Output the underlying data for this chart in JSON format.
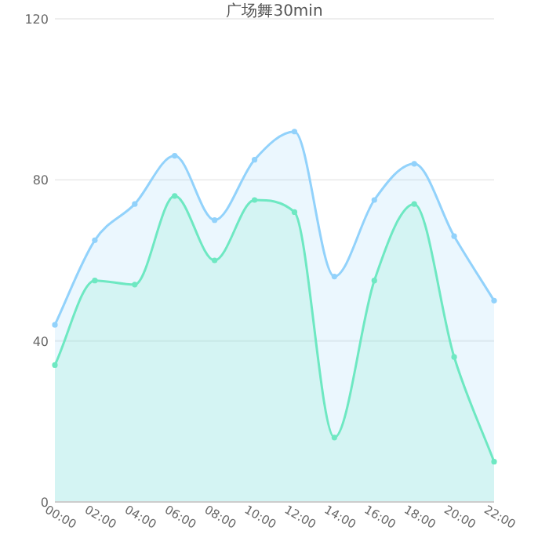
{
  "chart_data": {
    "type": "area",
    "title": "广场舞30min",
    "categories": [
      "00:00",
      "02:00",
      "04:00",
      "06:00",
      "08:00",
      "10:00",
      "12:00",
      "14:00",
      "16:00",
      "18:00",
      "20:00",
      "22:00"
    ],
    "series": [
      {
        "color": "#92d2fb",
        "values": [
          44,
          65,
          74,
          86,
          70,
          85,
          92,
          56,
          75,
          84,
          66,
          50
        ]
      },
      {
        "color": "#6ee8c2",
        "values": [
          34,
          55,
          54,
          76,
          60,
          75,
          72,
          16,
          55,
          74,
          36,
          10
        ]
      }
    ],
    "ylim": [
      0,
      120
    ],
    "yticks": [
      0,
      40,
      80,
      120
    ],
    "grid": "y",
    "marker": "circle",
    "line_style": "solid"
  }
}
